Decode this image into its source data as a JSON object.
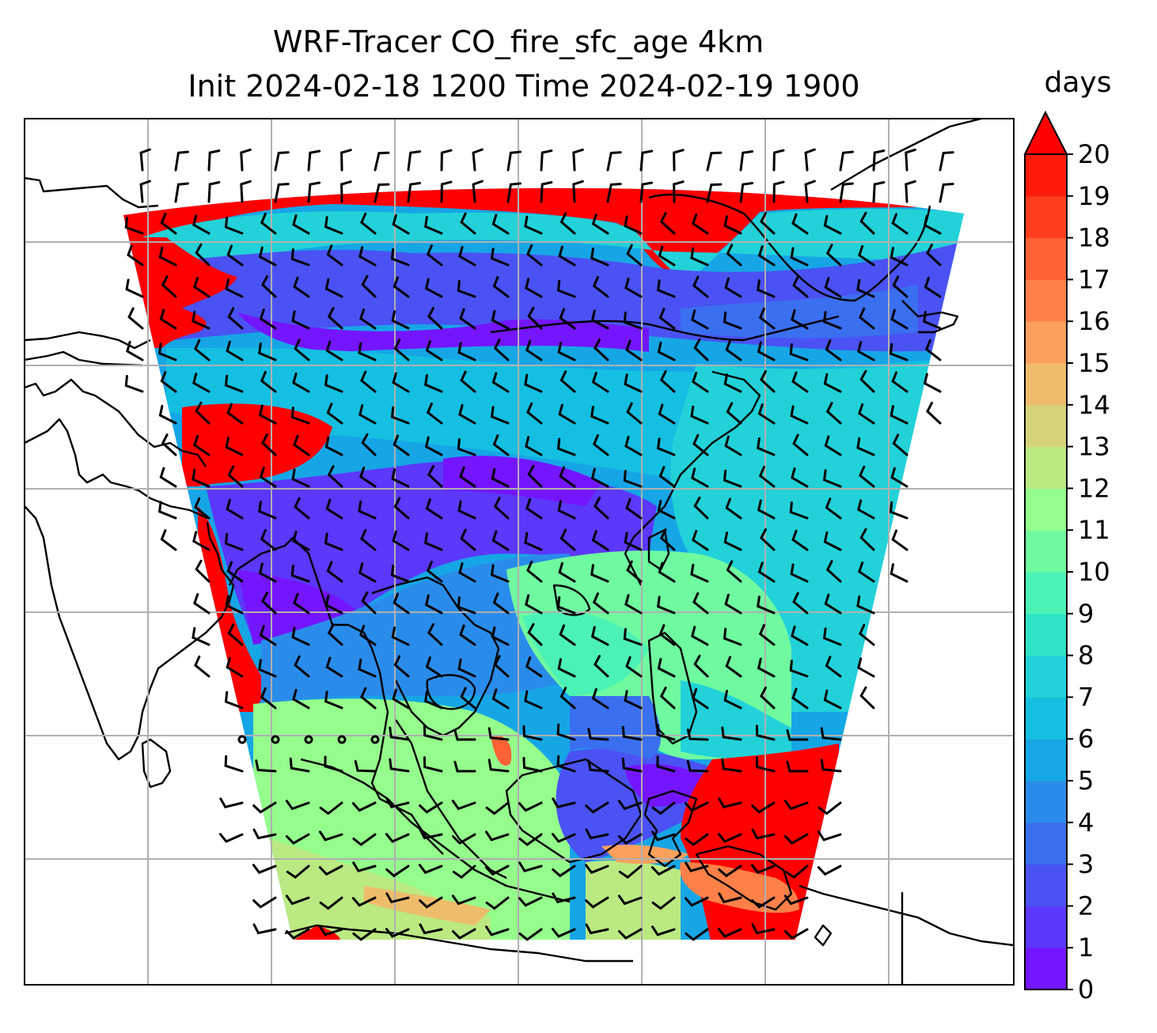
{
  "title": {
    "line1": "WRF-Tracer CO_fire_sfc_age 4km",
    "line2": "Init 2024-02-18 1200 Time 2024-02-19 1900"
  },
  "colorbar": {
    "unit": "days",
    "min": 0,
    "max": 20,
    "ticks": [
      "0",
      "1",
      "2",
      "3",
      "4",
      "5",
      "6",
      "7",
      "8",
      "9",
      "10",
      "11",
      "12",
      "13",
      "14",
      "15",
      "16",
      "17",
      "18",
      "19",
      "20"
    ],
    "extend": "max",
    "colors": [
      "#7416fd",
      "#5b38fa",
      "#4a52f3",
      "#3a6ff0",
      "#2a8cea",
      "#18a7e6",
      "#14bfe1",
      "#22d2d8",
      "#2ee3c6",
      "#4cf2b5",
      "#6ffaa0",
      "#95fd8c",
      "#bbe982",
      "#d7d37a",
      "#eebd6b",
      "#fba05c",
      "#ff8149",
      "#ff6236",
      "#ff3f1e",
      "#ff1b0b",
      "#ff0000"
    ]
  },
  "map": {
    "gridlines": true,
    "coastlines": true,
    "wind_barbs": true
  }
}
